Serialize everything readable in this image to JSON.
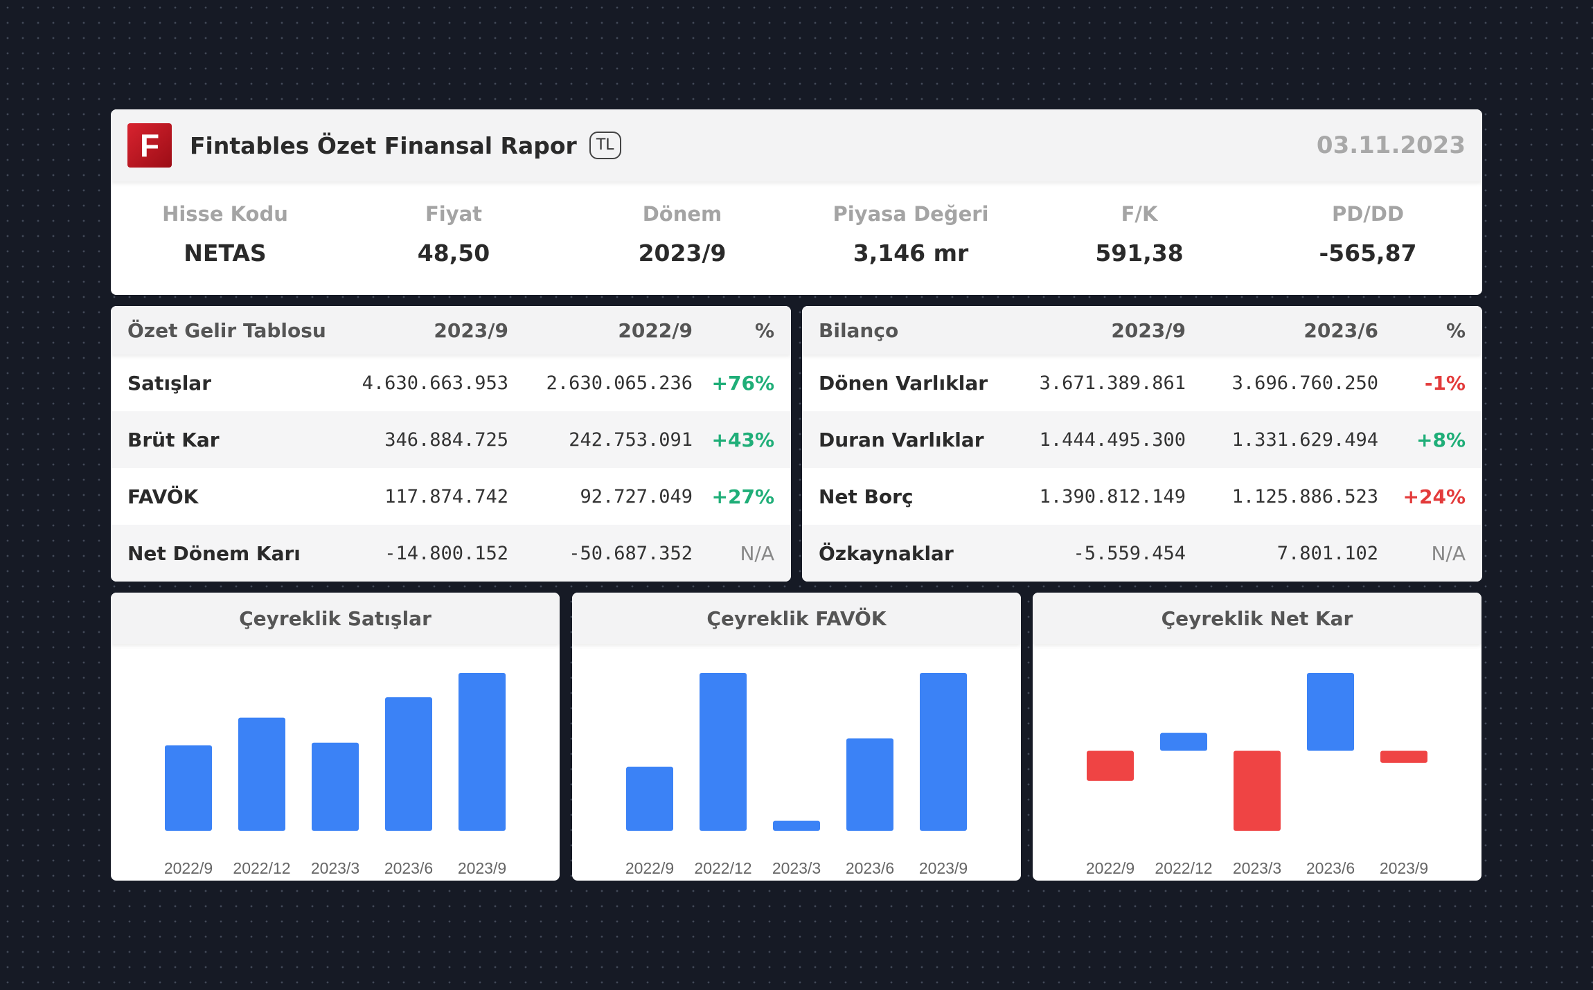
{
  "header": {
    "logo_letter": "F",
    "title": "Fintables Özet Finansal Rapor",
    "currency": "TL",
    "date": "03.11.2023"
  },
  "stats": [
    {
      "label": "Hisse Kodu",
      "value": "NETAS"
    },
    {
      "label": "Fiyat",
      "value": "48,50"
    },
    {
      "label": "Dönem",
      "value": "2023/9"
    },
    {
      "label": "Piyasa Değeri",
      "value": "3,146 mr"
    },
    {
      "label": "F/K",
      "value": "591,38"
    },
    {
      "label": "PD/DD",
      "value": "-565,87"
    }
  ],
  "income_table": {
    "headers": [
      "Özet Gelir Tablosu",
      "2023/9",
      "2022/9",
      "%"
    ],
    "rows": [
      {
        "label": "Satışlar",
        "cur": "4.630.663.953",
        "prev": "2.630.065.236",
        "pct": "+76%"
      },
      {
        "label": "Brüt Kar",
        "cur": "346.884.725",
        "prev": "242.753.091",
        "pct": "+43%"
      },
      {
        "label": "FAVÖK",
        "cur": "117.874.742",
        "prev": "92.727.049",
        "pct": "+27%"
      },
      {
        "label": "Net Dönem Karı",
        "cur": "-14.800.152",
        "prev": "-50.687.352",
        "pct": "N/A"
      }
    ]
  },
  "balance_table": {
    "headers": [
      "Bilanço",
      "2023/9",
      "2023/6",
      "%"
    ],
    "rows": [
      {
        "label": "Dönen Varlıklar",
        "cur": "3.671.389.861",
        "prev": "3.696.760.250",
        "pct": "-1%"
      },
      {
        "label": "Duran Varlıklar",
        "cur": "1.444.495.300",
        "prev": "1.331.629.494",
        "pct": "+8%"
      },
      {
        "label": "Net Borç",
        "cur": "1.390.812.149",
        "prev": "1.125.886.523",
        "pct": "+24%"
      },
      {
        "label": "Özkaynaklar",
        "cur": "-5.559.454",
        "prev": "7.801.102",
        "pct": "N/A"
      }
    ]
  },
  "colors": {
    "positive": "#3b82f6",
    "negative": "#ef4444",
    "up_text": "#1fae78",
    "down_text": "#e33b3b"
  },
  "chart_data": [
    {
      "type": "bar",
      "title": "Çeyreklik Satışlar",
      "categories": [
        "2022/9",
        "2022/12",
        "2023/3",
        "2023/6",
        "2023/9"
      ],
      "values": [
        1.3,
        1.72,
        1.34,
        2.03,
        2.4
      ],
      "ylim": [
        0,
        2.4
      ]
    },
    {
      "type": "bar",
      "title": "Çeyreklik FAVÖK",
      "categories": [
        "2022/9",
        "2022/12",
        "2023/3",
        "2023/6",
        "2023/9"
      ],
      "values": [
        45,
        111,
        7,
        65,
        111
      ],
      "ylim": [
        0,
        111
      ]
    },
    {
      "type": "bar",
      "title": "Çeyreklik Net Kar",
      "categories": [
        "2022/9",
        "2022/12",
        "2023/3",
        "2023/6",
        "2023/9"
      ],
      "values": [
        -15,
        9,
        -40,
        39,
        -6
      ],
      "ylim": [
        -40,
        39
      ]
    }
  ]
}
